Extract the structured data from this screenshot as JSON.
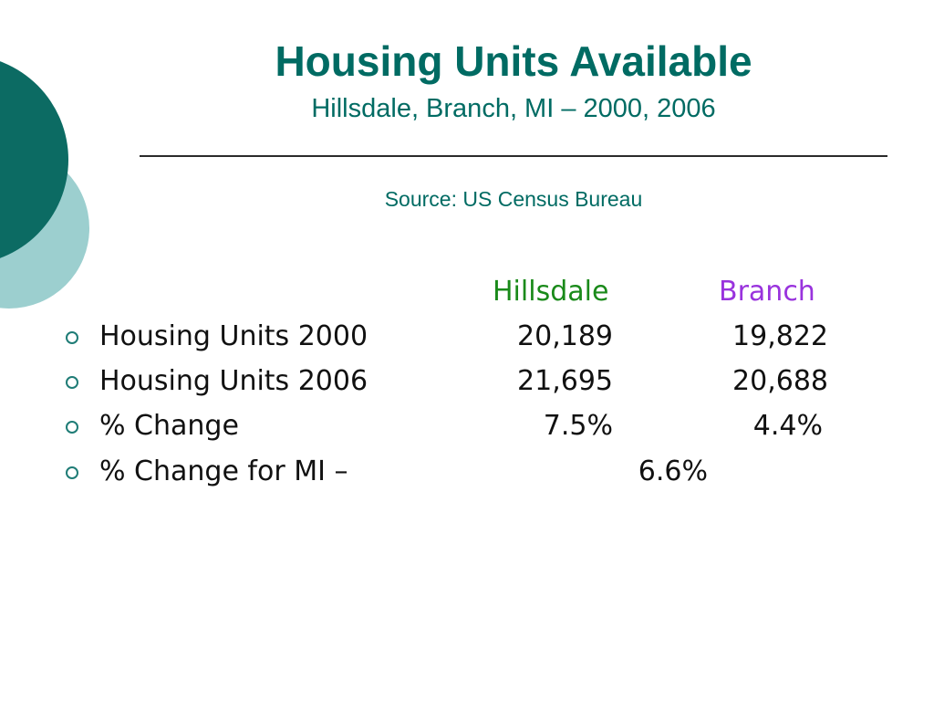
{
  "slide": {
    "title": "Housing Units Available",
    "subtitle": "Hillsdale, Branch, MI – 2000, 2006",
    "source": "Source: US Census Bureau"
  },
  "table": {
    "columns": [
      "Hillsdale",
      "Branch"
    ],
    "rows": [
      {
        "label": "Housing Units 2000",
        "hillsdale": "20,189",
        "branch": "19,822"
      },
      {
        "label": "Housing Units 2006",
        "hillsdale": "21,695",
        "branch": "20,688"
      },
      {
        "label": "% Change",
        "hillsdale": "7.5%",
        "branch": "4.4%"
      }
    ],
    "mi_row": {
      "label": "% Change for MI –",
      "value": "6.6%"
    }
  },
  "colors": {
    "title": "#006b63",
    "hillsdale_header": "#1a8a1a",
    "branch_header": "#9933dd",
    "circle_dark": "#0c6b63",
    "circle_light": "#9ccfcf",
    "bullet": "#1f7c76"
  },
  "icons": {
    "bullet": "hollow-circle-icon",
    "decoration": "overlapping-circles"
  }
}
